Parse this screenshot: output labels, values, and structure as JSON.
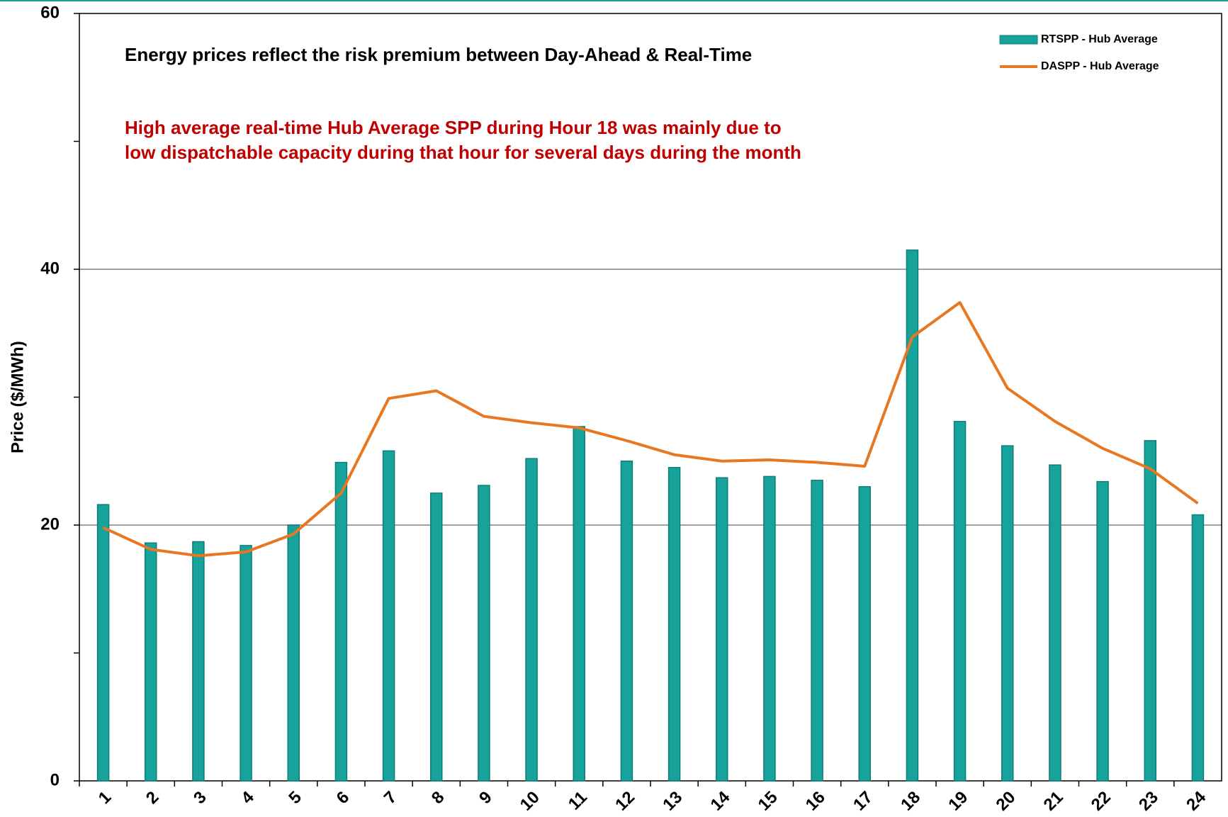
{
  "chart_data": {
    "type": "bar_line",
    "y_label": "Price ($/MWh)",
    "annotations": [
      "Energy prices reflect the risk premium between Day-Ahead & Real-Time",
      "High average real-time Hub Average SPP during Hour 18 was mainly due to low dispatchable capacity during that hour for several days during the month"
    ],
    "annotation_colors": [
      "#000000",
      "#c00000"
    ],
    "categories": [
      "1",
      "2",
      "3",
      "4",
      "5",
      "6",
      "7",
      "8",
      "9",
      "10",
      "11",
      "12",
      "13",
      "14",
      "15",
      "16",
      "17",
      "18",
      "19",
      "20",
      "21",
      "22",
      "23",
      "24"
    ],
    "series": [
      {
        "name": "RTSPP - Hub Average",
        "type": "bar",
        "color": "#17a39b",
        "values": [
          21.6,
          18.6,
          18.7,
          18.4,
          20.0,
          24.9,
          25.8,
          22.5,
          23.1,
          25.2,
          27.7,
          25.0,
          24.5,
          23.7,
          23.8,
          23.5,
          23.0,
          41.5,
          28.1,
          26.2,
          24.7,
          23.4,
          26.6,
          20.8
        ]
      },
      {
        "name": "DASPP - Hub Average",
        "type": "line",
        "color": "#e87722",
        "values": [
          19.8,
          18.1,
          17.6,
          17.9,
          19.3,
          22.5,
          29.9,
          30.5,
          28.5,
          28.0,
          27.6,
          26.6,
          25.5,
          25.0,
          25.1,
          24.9,
          24.6,
          34.7,
          37.4,
          30.7,
          28.1,
          26.0,
          24.4,
          21.7
        ]
      }
    ],
    "ylim": [
      0,
      60
    ],
    "yticks": [
      0,
      20,
      40,
      60
    ],
    "minor_yticks": [
      10,
      30,
      50
    ],
    "grid": true,
    "legend": "top-right"
  }
}
